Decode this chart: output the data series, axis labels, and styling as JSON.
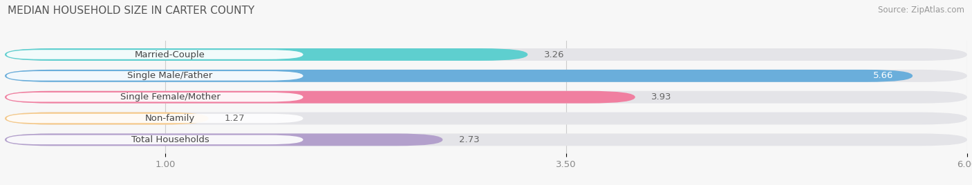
{
  "title": "MEDIAN HOUSEHOLD SIZE IN CARTER COUNTY",
  "source": "Source: ZipAtlas.com",
  "categories": [
    "Married-Couple",
    "Single Male/Father",
    "Single Female/Mother",
    "Non-family",
    "Total Households"
  ],
  "values": [
    3.26,
    5.66,
    3.93,
    1.27,
    2.73
  ],
  "bar_colors": [
    "#5ecfcf",
    "#6aaedb",
    "#f07fa0",
    "#f5c98a",
    "#b3a0cc"
  ],
  "track_color": "#e4e4e8",
  "xmin": 0.0,
  "xmax": 6.0,
  "xticks": [
    1.0,
    3.5,
    6.0
  ],
  "background_color": "#f7f7f7",
  "bar_height": 0.58,
  "label_fontsize": 9.5,
  "value_fontsize": 9.5,
  "title_fontsize": 11,
  "source_fontsize": 8.5
}
